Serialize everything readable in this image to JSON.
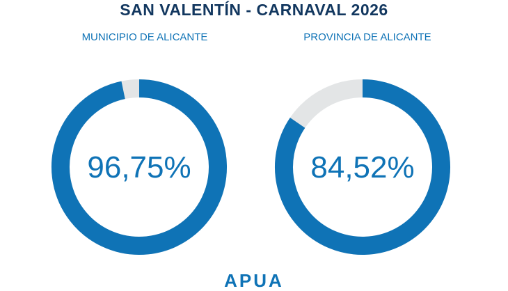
{
  "title": "SAN VALENTÍN - CARNAVAL 2026",
  "logo_text": "APUA",
  "colors": {
    "title": "#12375f",
    "accent": "#0f73b6",
    "track": "#e3e5e6"
  },
  "chart_data": [
    {
      "type": "pie",
      "title": "MUNICIPIO DE ALICANTE",
      "value": 96.75,
      "value_label": "96,75%",
      "max": 100
    },
    {
      "type": "pie",
      "title": "PROVINCIA DE ALICANTE",
      "value": 84.52,
      "value_label": "84,52%",
      "max": 100
    }
  ]
}
